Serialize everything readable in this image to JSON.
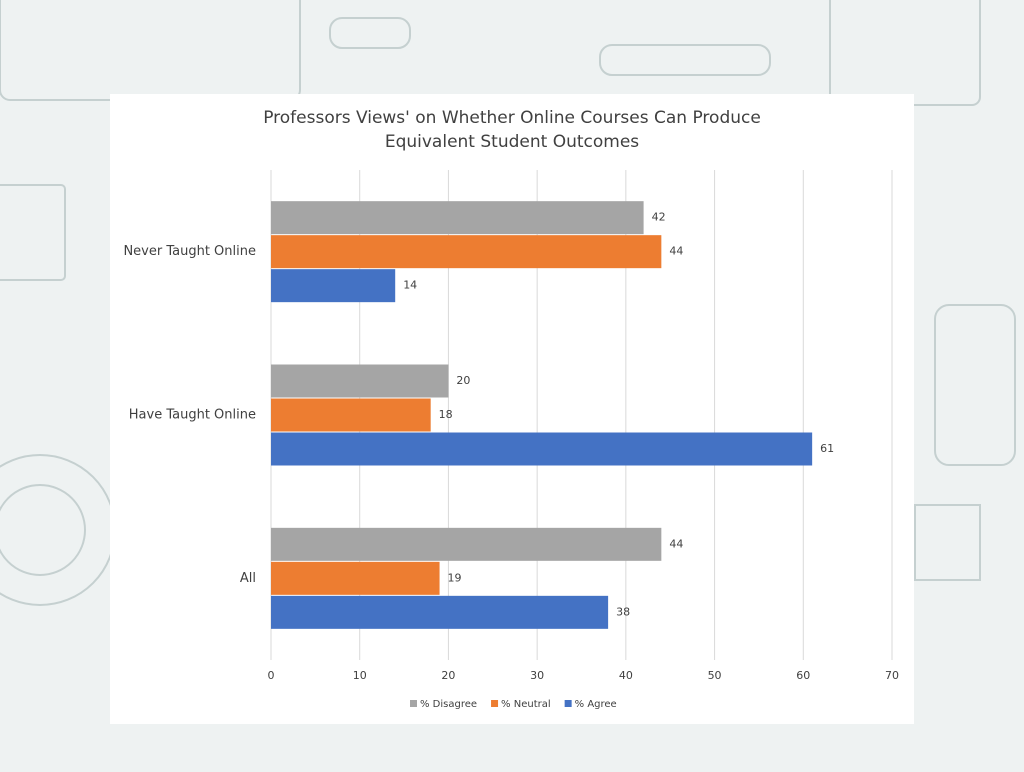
{
  "chart_data": {
    "type": "bar",
    "orientation": "horizontal",
    "title": "Professors Views' on Whether Online Courses Can Produce Equivalent Student Outcomes",
    "categories": [
      "Never Taught Online",
      "Have Taught Online",
      "All"
    ],
    "series": [
      {
        "name": "% Disagree",
        "color": "#a5a5a5",
        "values": [
          42,
          20,
          44
        ]
      },
      {
        "name": "% Neutral",
        "color": "#ed7d31",
        "values": [
          44,
          18,
          19
        ]
      },
      {
        "name": "% Agree",
        "color": "#4472c4",
        "values": [
          14,
          61,
          38
        ]
      }
    ],
    "xlim": [
      0,
      70
    ],
    "xticks": [
      0,
      10,
      20,
      30,
      40,
      50,
      60,
      70
    ],
    "grid": true,
    "legend": "bottom"
  }
}
